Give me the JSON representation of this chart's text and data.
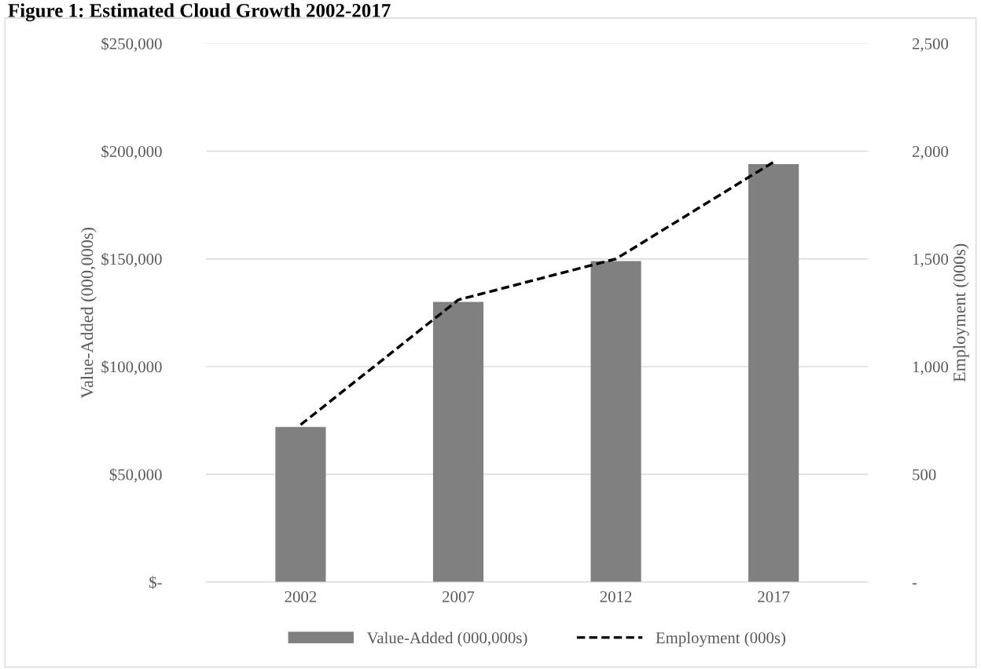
{
  "chart_data": {
    "type": "bar",
    "title": "Figure 1: Estimated Cloud Growth 2002-2017",
    "categories": [
      "2002",
      "2007",
      "2012",
      "2017"
    ],
    "series": [
      {
        "name": "Value-Added (000,000s)",
        "color": "#808080",
        "values": [
          72000,
          130000,
          149000,
          194000
        ]
      },
      {
        "name": "Employment (000s)",
        "type": "line",
        "axis": "y2",
        "color": "#000000",
        "line_style": "dashed",
        "marker": "none",
        "values": [
          730,
          1310,
          1500,
          1950
        ]
      }
    ],
    "ylabel": "Value-Added (000,000s)",
    "y2label": "Employment (000s)",
    "ylim": [
      0,
      250000
    ],
    "yticks": [
      {
        "value": 0,
        "label": "$-"
      },
      {
        "value": 50000,
        "label": "$50,000"
      },
      {
        "value": 100000,
        "label": "$100,000"
      },
      {
        "value": 150000,
        "label": "$150,000"
      },
      {
        "value": 200000,
        "label": "$200,000"
      },
      {
        "value": 250000,
        "label": "$250,000"
      }
    ],
    "y2lim": [
      0,
      2500
    ],
    "y2ticks": [
      {
        "value": 0,
        "label": "-"
      },
      {
        "value": 500,
        "label": "500"
      },
      {
        "value": 1000,
        "label": "1,000"
      },
      {
        "value": 1500,
        "label": "1,500"
      },
      {
        "value": 2000,
        "label": "2,000"
      },
      {
        "value": 2500,
        "label": "2,500"
      }
    ],
    "grid": "y",
    "legend": "bottom"
  }
}
